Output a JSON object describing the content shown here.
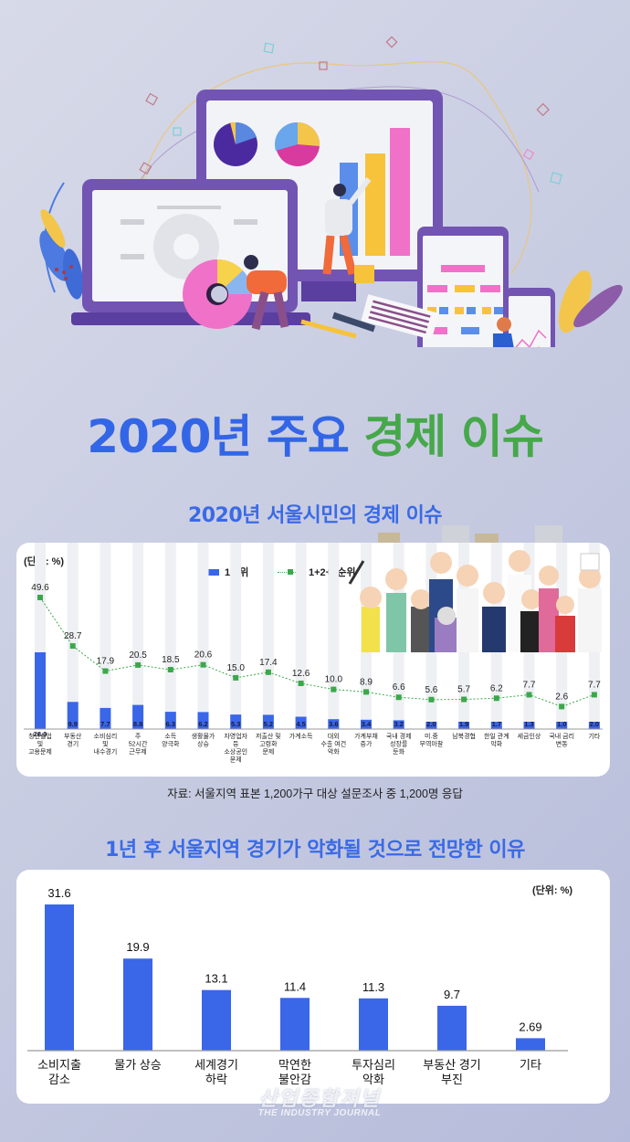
{
  "header": {
    "title_part1": "2020년 주요",
    "title_part2": "경제 이슈",
    "illustration": "data-analytics-dashboard-illustration"
  },
  "colors": {
    "blue": "#3366e6",
    "green": "#46a84a",
    "bar_blue": "#3a66e8",
    "line_green": "#3aa84a",
    "stripe": "#eef0f3"
  },
  "section1": {
    "title": "2020년 서울시민의 경제 이슈",
    "unit": "(단위: %)",
    "legend_bar": "1순위",
    "legend_line": "1+2+3순위",
    "source": "자료: 서울지역 표본 1,200가구 대상 설문조사 중 1,200명 응답"
  },
  "section2": {
    "title": "1년 후 서울지역 경기가 악화될 것으로 전망한 이유",
    "unit": "(단위: %)"
  },
  "watermark": {
    "ko": "산업종합저널",
    "en": "THE INDUSTRY JOURNAL"
  },
  "chart_data": [
    {
      "type": "bar",
      "title": "2020년 서울시민의 경제 이슈",
      "ylabel": "(단위: %)",
      "legend_position": "top",
      "grid": false,
      "categories": [
        "청년실업 및 고용문제",
        "부동산 경기",
        "소비심리 및 내수경기",
        "주 52시간 근무제",
        "소득 양극화",
        "생활물가 상승",
        "자영업자 등 소상공인 문제",
        "저출산 및 고령화 문제",
        "가계소득",
        "대외 수출 여건 악화",
        "가계부채 증가",
        "국내 경제 성장률 둔화",
        "미.중 무역마찰",
        "남북경협",
        "한일 관계 악화",
        "세금인상",
        "국내 금리 변동",
        "기타"
      ],
      "category_lines": [
        [
          "청년실업",
          "및",
          "고용문제"
        ],
        [
          "부동산",
          "경기"
        ],
        [
          "소비심리",
          "및",
          "내수경기"
        ],
        [
          "주",
          "52시간",
          "근무제"
        ],
        [
          "소득",
          "양극화"
        ],
        [
          "생활물가",
          "상승"
        ],
        [
          "자영업자",
          "등",
          "소상공인",
          "문제"
        ],
        [
          "저출산 및",
          "고령화",
          "문제"
        ],
        [
          "가계소득"
        ],
        [
          "대외",
          "수출 여건",
          "악화"
        ],
        [
          "가계부채",
          "증가"
        ],
        [
          "국내 경제",
          "성장률",
          "둔화"
        ],
        [
          "미.중",
          "무역마찰"
        ],
        [
          "남북경협"
        ],
        [
          "한일 관계",
          "악화"
        ],
        [
          "세금인상"
        ],
        [
          "국내 금리",
          "변동"
        ],
        [
          "기타"
        ]
      ],
      "series": [
        {
          "name": "1순위",
          "kind": "bar",
          "values": [
            28.0,
            9.9,
            7.7,
            8.8,
            6.3,
            6.2,
            5.3,
            5.2,
            4.5,
            3.6,
            3.4,
            3.2,
            2.0,
            1.9,
            1.7,
            1.3,
            1.0,
            2.0
          ]
        },
        {
          "name": "1+2+3순위",
          "kind": "line",
          "values": [
            49.6,
            28.7,
            17.9,
            20.5,
            18.5,
            20.6,
            15.0,
            17.4,
            12.6,
            10.0,
            8.9,
            6.6,
            5.6,
            5.7,
            6.2,
            7.7,
            2.6,
            7.7
          ]
        }
      ]
    },
    {
      "type": "bar",
      "title": "1년 후 서울지역 경기가 악화될 것으로 전망한 이유",
      "ylabel": "(단위: %)",
      "grid": false,
      "categories": [
        "소비지출 감소",
        "물가 상승",
        "세계경기 하락",
        "막연한 불안감",
        "투자심리 악화",
        "부동산 경기 부진",
        "기타"
      ],
      "category_lines": [
        [
          "소비지출",
          "감소"
        ],
        [
          "물가 상승"
        ],
        [
          "세계경기",
          "하락"
        ],
        [
          "막연한",
          "불안감"
        ],
        [
          "투자심리",
          "악화"
        ],
        [
          "부동산 경기",
          "부진"
        ],
        [
          "기타"
        ]
      ],
      "values": [
        31.6,
        19.9,
        13.1,
        11.4,
        11.3,
        9.7,
        2.69
      ],
      "value_labels": [
        "31.6",
        "19.9",
        "13.1",
        "11.4",
        "11.3",
        "9.7",
        "2.69"
      ]
    }
  ]
}
